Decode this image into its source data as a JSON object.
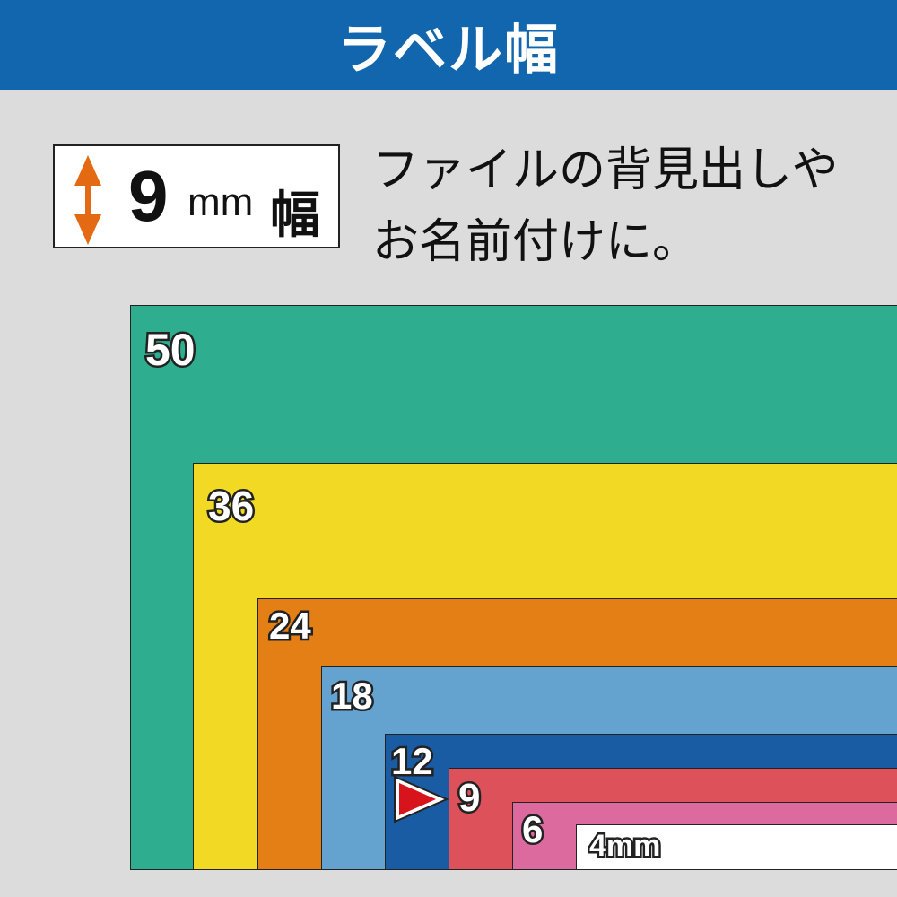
{
  "header": {
    "title": "ラベル幅",
    "color": "#1166ad"
  },
  "badge": {
    "value": "9",
    "unit": "mm",
    "suffix": "幅",
    "arrow_color": "#e36a12"
  },
  "description": {
    "line1": "ファイルの背見出しや",
    "line2": "お名前付けに。"
  },
  "widths": [
    {
      "label": "50",
      "color": "#2fae8f"
    },
    {
      "label": "36",
      "color": "#f2d923"
    },
    {
      "label": "24",
      "color": "#e37f14"
    },
    {
      "label": "18",
      "color": "#64a3d0"
    },
    {
      "label": "12",
      "color": "#1a5ca3"
    },
    {
      "label": "9",
      "color": "#dc515a"
    },
    {
      "label": "6",
      "color": "#dc6a9f"
    },
    {
      "label": "4mm",
      "color": "#ffffff"
    }
  ],
  "selected_width": "9",
  "pointer_color": "#d7141c"
}
